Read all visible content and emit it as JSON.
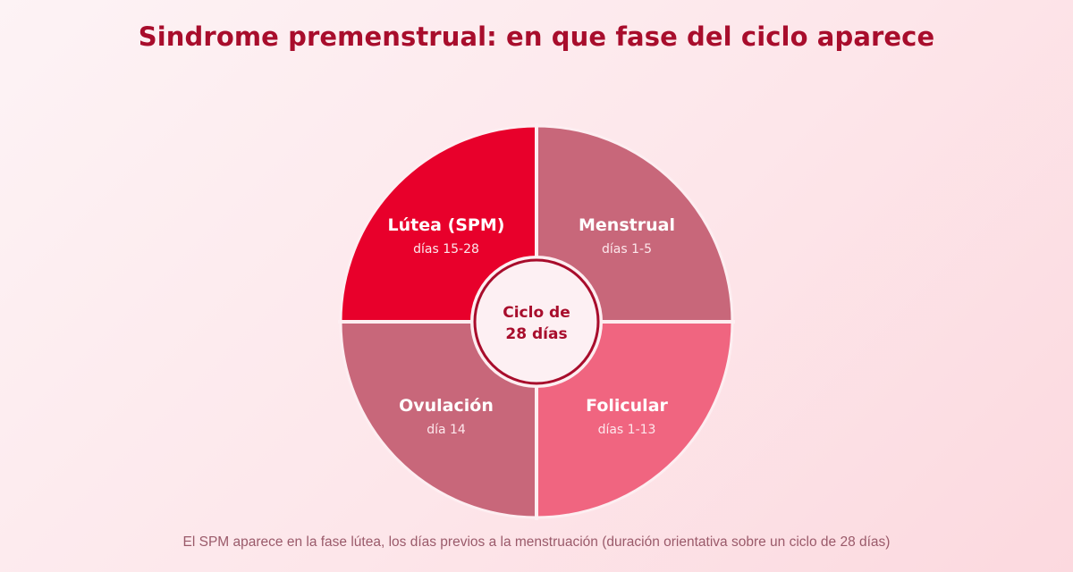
{
  "title": "Sindrome premenstrual: en que fase del ciclo aparece",
  "center": {
    "line1": "Ciclo de",
    "line2": "28 días"
  },
  "phases": [
    {
      "name": "Lútea (SPM)",
      "days": "días 15-28",
      "color": "#e8002b",
      "position": "top-left",
      "highlighted": true
    },
    {
      "name": "Menstrual",
      "days": "días 1-5",
      "color": "#c8677a",
      "position": "top-right",
      "highlighted": false
    },
    {
      "name": "Ovulación",
      "days": "día 14",
      "color": "#c8677a",
      "position": "bottom-left",
      "highlighted": false
    },
    {
      "name": "Folicular",
      "days": "días 1-13",
      "color": "#f06580",
      "position": "bottom-right",
      "highlighted": false
    }
  ],
  "caption": "El SPM aparece en la fase lútea, los días previos a la menstruación (duración orientativa sobre un ciclo de 28 días)",
  "colors": {
    "title": "#a80d2c",
    "center_ring": "#a80d2c",
    "center_fill": "#fdf0f3",
    "caption": "#9a5a6a"
  }
}
